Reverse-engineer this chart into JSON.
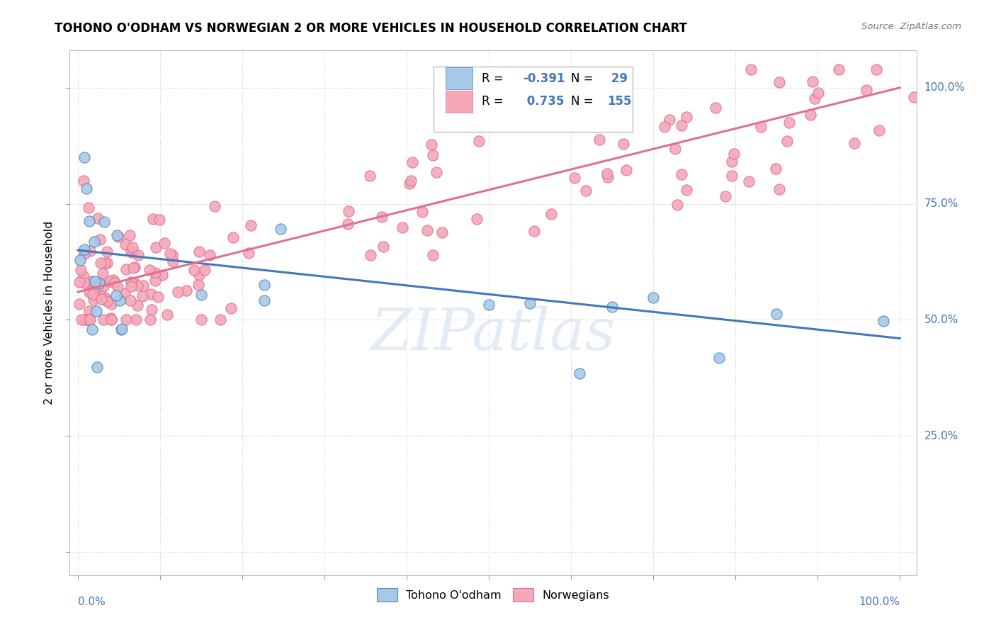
{
  "title": "TOHONO O'ODHAM VS NORWEGIAN 2 OR MORE VEHICLES IN HOUSEHOLD CORRELATION CHART",
  "source": "Source: ZipAtlas.com",
  "ylabel": "2 or more Vehicles in Household",
  "watermark": "ZIPatlas",
  "legend_label1": "Tohono O'odham",
  "legend_label2": "Norwegians",
  "color_blue_fill": "#A8C8E8",
  "color_blue_edge": "#5588BB",
  "color_pink_fill": "#F4A8B8",
  "color_pink_edge": "#E07090",
  "color_blue_line": "#4477BB",
  "color_pink_line": "#E07090",
  "color_label_blue": "#4477BB",
  "color_grid": "#CCCCCC",
  "ytick_vals": [
    0.0,
    0.25,
    0.5,
    0.75,
    1.0
  ],
  "ytick_labels": [
    "",
    "25.0%",
    "50.0%",
    "75.0%",
    "100.0%"
  ],
  "xtick_labels": [
    "0.0%",
    "100.0%"
  ],
  "xlim": [
    -0.01,
    1.02
  ],
  "ylim": [
    -0.05,
    1.08
  ],
  "blue_intercept": 0.65,
  "blue_slope": -0.19,
  "pink_intercept": 0.56,
  "pink_slope": 0.44,
  "n_blue": 29,
  "n_pink": 155,
  "seed": 123
}
